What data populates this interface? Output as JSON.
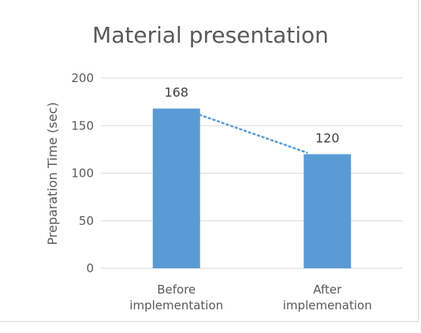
{
  "chart_data": {
    "type": "bar",
    "title": "Material presentation",
    "xlabel": "",
    "ylabel": "Preparation Time (sec)",
    "categories": [
      [
        "Before",
        "implementation"
      ],
      [
        "After",
        "implemenation"
      ]
    ],
    "values": [
      168,
      120
    ],
    "data_labels": [
      "168",
      "120"
    ],
    "ylim": [
      0,
      200
    ],
    "yticks": [
      0,
      50,
      100,
      150,
      200
    ],
    "grid": true,
    "trendline": "dotted",
    "colors": {
      "bar": "#5b9bd5",
      "trend": "#5b9bd5",
      "grid": "#d9d9d9"
    }
  }
}
